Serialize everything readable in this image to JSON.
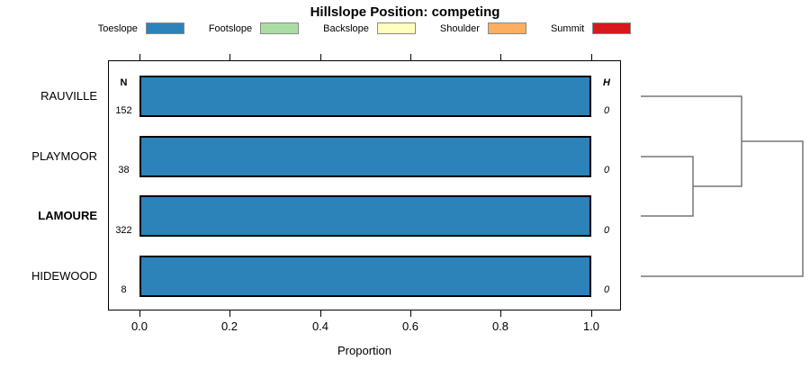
{
  "title": "Hillslope Position: competing",
  "legend": {
    "items": [
      {
        "label": "Toeslope",
        "color": "#2B83BA"
      },
      {
        "label": "Footslope",
        "color": "#ABDDA4"
      },
      {
        "label": "Backslope",
        "color": "#FFFFBF"
      },
      {
        "label": "Shoulder",
        "color": "#FDAE61"
      },
      {
        "label": "Summit",
        "color": "#D7191C"
      }
    ]
  },
  "axis": {
    "xlabel": "Proportion",
    "ticks": [
      "0.0",
      "0.2",
      "0.4",
      "0.6",
      "0.8",
      "1.0"
    ]
  },
  "columns": {
    "n_header": "N",
    "h_header": "H"
  },
  "rows": [
    {
      "name": "RAUVILLE",
      "n": "152",
      "h": "0",
      "toeslope": 1.0,
      "font_weight": "normal"
    },
    {
      "name": "PLAYMOOR",
      "n": "38",
      "h": "0",
      "toeslope": 1.0,
      "font_weight": "normal"
    },
    {
      "name": "LAMOURE",
      "n": "322",
      "h": "0",
      "toeslope": 1.0,
      "font_weight": "bold"
    },
    {
      "name": "HIDEWOOD",
      "n": "8",
      "h": "0",
      "toeslope": 1.0,
      "font_weight": "normal"
    }
  ],
  "chart_data": {
    "type": "bar",
    "orientation": "horizontal",
    "stacked": true,
    "title": "Hillslope Position: competing",
    "xlabel": "Proportion",
    "xlim": [
      0.0,
      1.0
    ],
    "x_ticks": [
      0.0,
      0.2,
      0.4,
      0.6,
      0.8,
      1.0
    ],
    "grid": false,
    "legend_position": "top",
    "categories": [
      "RAUVILLE",
      "PLAYMOOR",
      "LAMOURE",
      "HIDEWOOD"
    ],
    "series": [
      {
        "name": "Toeslope",
        "color": "#2B83BA",
        "values": [
          1.0,
          1.0,
          1.0,
          1.0
        ]
      },
      {
        "name": "Footslope",
        "color": "#ABDDA4",
        "values": [
          0,
          0,
          0,
          0
        ]
      },
      {
        "name": "Backslope",
        "color": "#FFFFBF",
        "values": [
          0,
          0,
          0,
          0
        ]
      },
      {
        "name": "Shoulder",
        "color": "#FDAE61",
        "values": [
          0,
          0,
          0,
          0
        ]
      },
      {
        "name": "Summit",
        "color": "#D7191C",
        "values": [
          0,
          0,
          0,
          0
        ]
      }
    ],
    "n_column": {
      "header": "N",
      "values": [
        152,
        38,
        322,
        8
      ]
    },
    "h_column": {
      "header": "H",
      "values": [
        0,
        0,
        0,
        0
      ]
    },
    "highlighted_category": "LAMOURE",
    "dendrogram": {
      "newick": "((RAUVILLE,(PLAYMOOR,LAMOURE)),HIDEWOOD);"
    }
  }
}
